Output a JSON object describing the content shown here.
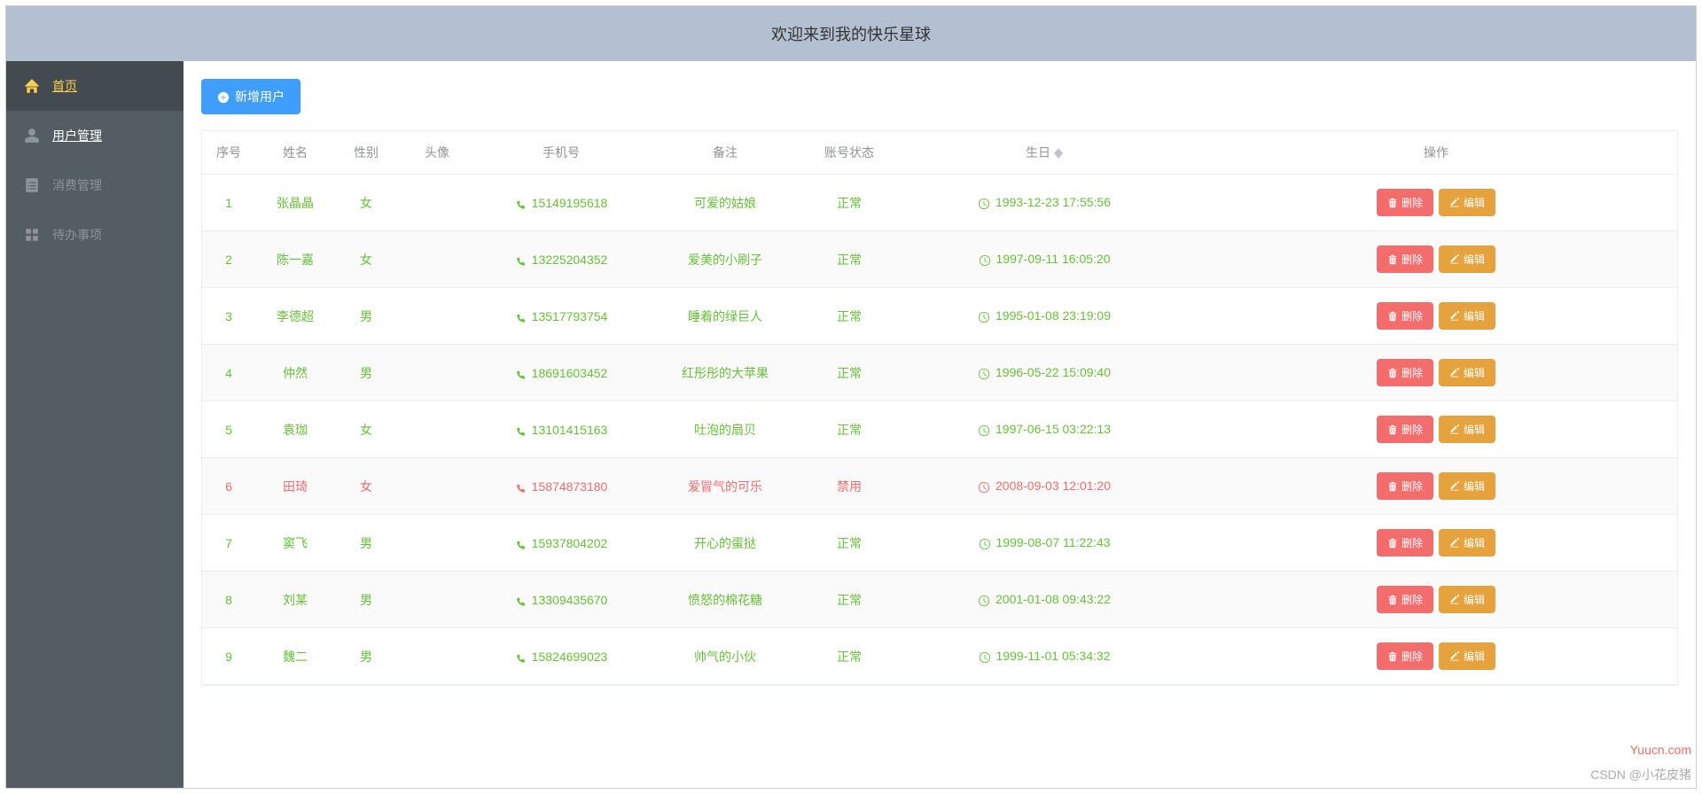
{
  "header": {
    "title": "欢迎来到我的快乐星球"
  },
  "sidebar": {
    "items": [
      {
        "label": "首页",
        "icon": "home",
        "active": true
      },
      {
        "label": "用户管理",
        "icon": "user",
        "active": false,
        "linked": true
      },
      {
        "label": "消费管理",
        "icon": "document",
        "active": false,
        "muted": true
      },
      {
        "label": "待办事项",
        "icon": "grid",
        "active": false,
        "muted": true
      }
    ]
  },
  "toolbar": {
    "add_user_label": "新增用户"
  },
  "table": {
    "columns": [
      "序号",
      "姓名",
      "性别",
      "头像",
      "手机号",
      "备注",
      "账号状态",
      "生日",
      "操作"
    ],
    "sortable_cols": [
      7
    ],
    "action_labels": {
      "delete": "删除",
      "edit": "编辑"
    },
    "rows": [
      {
        "idx": "1",
        "name": "张晶晶",
        "gender": "女",
        "avatar": "",
        "phone": "15149195618",
        "note": "可爱的姑娘",
        "status": "正常",
        "birthday": "1993-12-23 17:55:56",
        "disabled": false
      },
      {
        "idx": "2",
        "name": "陈一嘉",
        "gender": "女",
        "avatar": "",
        "phone": "13225204352",
        "note": "爱美的小刷子",
        "status": "正常",
        "birthday": "1997-09-11 16:05:20",
        "disabled": false
      },
      {
        "idx": "3",
        "name": "李德超",
        "gender": "男",
        "avatar": "",
        "phone": "13517793754",
        "note": "睡着的绿巨人",
        "status": "正常",
        "birthday": "1995-01-08 23:19:09",
        "disabled": false
      },
      {
        "idx": "4",
        "name": "仲然",
        "gender": "男",
        "avatar": "",
        "phone": "18691603452",
        "note": "红彤彤的大苹果",
        "status": "正常",
        "birthday": "1996-05-22 15:09:40",
        "disabled": false
      },
      {
        "idx": "5",
        "name": "袁珈",
        "gender": "女",
        "avatar": "",
        "phone": "13101415163",
        "note": "吐泡的扇贝",
        "status": "正常",
        "birthday": "1997-06-15 03:22:13",
        "disabled": false
      },
      {
        "idx": "6",
        "name": "田琦",
        "gender": "女",
        "avatar": "",
        "phone": "15874873180",
        "note": "爱冒气的可乐",
        "status": "禁用",
        "birthday": "2008-09-03 12:01:20",
        "disabled": true
      },
      {
        "idx": "7",
        "name": "窦飞",
        "gender": "男",
        "avatar": "",
        "phone": "15937804202",
        "note": "开心的蛋挞",
        "status": "正常",
        "birthday": "1999-08-07 11:22:43",
        "disabled": false
      },
      {
        "idx": "8",
        "name": "刘某",
        "gender": "男",
        "avatar": "",
        "phone": "13309435670",
        "note": "愤怒的棉花糖",
        "status": "正常",
        "birthday": "2001-01-08 09:43:22",
        "disabled": false
      },
      {
        "idx": "9",
        "name": "魏二",
        "gender": "男",
        "avatar": "",
        "phone": "15824699023",
        "note": "帅气的小伙",
        "status": "正常",
        "birthday": "1999-11-01 05:34:32",
        "disabled": false
      }
    ]
  },
  "colors": {
    "header_bg": "#b3c0d1",
    "sidebar_bg": "#545c64",
    "sidebar_active_bg": "#434a50",
    "sidebar_active_color": "#ffd04b",
    "primary": "#409eff",
    "success": "#67c23a",
    "danger": "#f56c6c",
    "warning": "#e6a23c",
    "text_secondary": "#909399"
  },
  "watermark": {
    "line1": "Yuucn.com",
    "line2": "CSDN @小花皮猪"
  }
}
